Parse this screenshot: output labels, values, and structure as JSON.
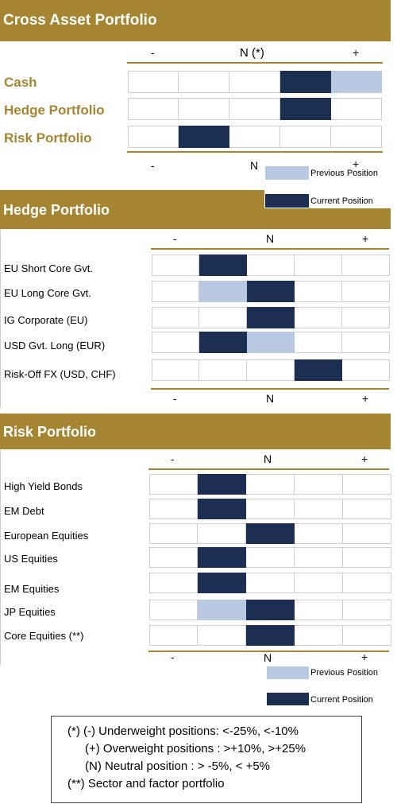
{
  "sections": {
    "cross": {
      "title": "Cross Asset Portfolio"
    },
    "hedge": {
      "title": "Hedge Portfolio"
    },
    "risk": {
      "title": "Risk Portfolio"
    }
  },
  "scale": {
    "minus": "-",
    "neutral_top": "N (*)",
    "neutral": "N",
    "plus": "+"
  },
  "legend": {
    "previous": "Previous Position",
    "current": "Current Position"
  },
  "colors": {
    "gold": "#a58531",
    "current": "#1c2f52",
    "previous": "#b8c9e1"
  },
  "cross_rows": [
    {
      "label": "Cash",
      "cells": [
        "",
        "",
        "",
        "cur",
        "prev"
      ]
    },
    {
      "label": "Hedge Portfolio",
      "cells": [
        "",
        "",
        "",
        "cur",
        ""
      ]
    },
    {
      "label": "Risk Portfolio",
      "cells": [
        "",
        "cur",
        "",
        "",
        ""
      ]
    }
  ],
  "hedge_rows": [
    {
      "label": "EU Short Core Gvt.",
      "cells": [
        "",
        "cur",
        "",
        "",
        ""
      ]
    },
    {
      "label": "EU Long Core Gvt.",
      "cells": [
        "",
        "prev",
        "cur",
        "",
        ""
      ]
    },
    {
      "label": "IG Corporate (EU)",
      "cells": [
        "",
        "",
        "cur",
        "",
        ""
      ]
    },
    {
      "label": "USD Gvt. Long (EUR)",
      "cells": [
        "",
        "cur",
        "prev",
        "",
        ""
      ]
    },
    {
      "label": "Risk-Off FX (USD, CHF)",
      "cells": [
        "",
        "",
        "",
        "cur",
        ""
      ]
    }
  ],
  "risk_rows": [
    {
      "label": "High Yield Bonds",
      "cells": [
        "",
        "cur",
        "",
        "",
        ""
      ]
    },
    {
      "label": "EM Debt",
      "cells": [
        "",
        "cur",
        "",
        "",
        ""
      ]
    },
    {
      "label": "European Equities",
      "cells": [
        "",
        "",
        "cur",
        "",
        ""
      ]
    },
    {
      "label": "US Equities",
      "cells": [
        "",
        "cur",
        "",
        "",
        ""
      ]
    },
    {
      "label": "EM Equities",
      "cells": [
        "",
        "cur",
        "",
        "",
        ""
      ]
    },
    {
      "label": "JP Equities",
      "cells": [
        "",
        "prev",
        "cur",
        "",
        ""
      ]
    },
    {
      "label": "Core Equities (**)",
      "cells": [
        "",
        "",
        "cur",
        "",
        ""
      ]
    }
  ],
  "notes": {
    "line1": "(*) (-)  Underweight positions:  <-25%, <-10%",
    "line2": "(+) Overweight positions  :   >+10%, >+25%",
    "line3": "(N) Neutral position          : > -5%, < +5%",
    "line4": "(**) Sector and factor portfolio"
  }
}
